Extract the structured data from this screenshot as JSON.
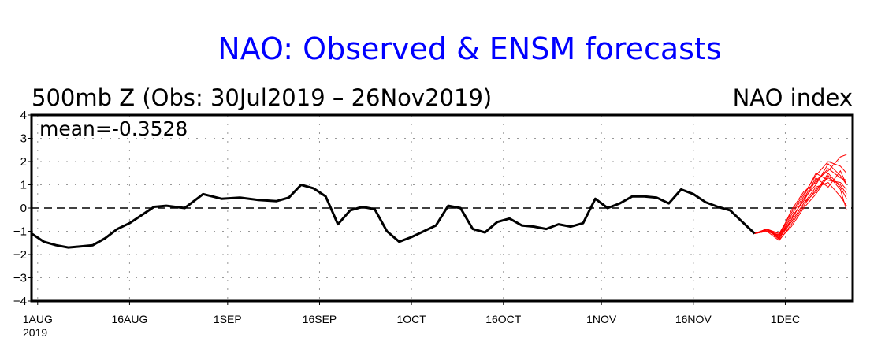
{
  "chart_data": {
    "type": "line",
    "title": "NAO: Observed & ENSM forecasts",
    "subtitle_left": "500mb Z (Obs: 30Jul2019 – 26Nov2019)",
    "subtitle_right": "NAO index",
    "annotation": "mean=-0.3528",
    "ylim": [
      -4,
      4
    ],
    "y_ticks": [
      4,
      3,
      2,
      1,
      0,
      -1,
      -2,
      -3,
      -4
    ],
    "y_tick_labels": [
      "4",
      "3",
      "2",
      "1",
      "0",
      "−1",
      "−2",
      "−3",
      "−4"
    ],
    "xlim": [
      "2019-07-31",
      "2019-12-12"
    ],
    "x_ticks": [
      "2019-08-01",
      "2019-08-16",
      "2019-09-01",
      "2019-09-16",
      "2019-10-01",
      "2019-10-16",
      "2019-11-01",
      "2019-11-16",
      "2019-12-01"
    ],
    "x_tick_labels": [
      "1AUG",
      "16AUG",
      "1SEP",
      "16SEP",
      "1OCT",
      "16OCT",
      "1NOV",
      "16NOV",
      "1DEC"
    ],
    "x_year_label": "2019",
    "grid": true,
    "zero_line": "dashed",
    "colors": {
      "observed": "#000000",
      "forecast": "#ff0000",
      "title": "#0000ff",
      "grid": "#999999"
    },
    "series": [
      {
        "role": "observed",
        "x": [
          "2019-07-31",
          "2019-08-02",
          "2019-08-04",
          "2019-08-06",
          "2019-08-08",
          "2019-08-10",
          "2019-08-12",
          "2019-08-14",
          "2019-08-16",
          "2019-08-18",
          "2019-08-20",
          "2019-08-22",
          "2019-08-25",
          "2019-08-28",
          "2019-08-31",
          "2019-09-03",
          "2019-09-06",
          "2019-09-09",
          "2019-09-11",
          "2019-09-13",
          "2019-09-15",
          "2019-09-17",
          "2019-09-19",
          "2019-09-21",
          "2019-09-23",
          "2019-09-25",
          "2019-09-27",
          "2019-09-29",
          "2019-10-01",
          "2019-10-03",
          "2019-10-05",
          "2019-10-07",
          "2019-10-09",
          "2019-10-11",
          "2019-10-13",
          "2019-10-15",
          "2019-10-17",
          "2019-10-19",
          "2019-10-21",
          "2019-10-23",
          "2019-10-25",
          "2019-10-27",
          "2019-10-29",
          "2019-10-31",
          "2019-11-02",
          "2019-11-04",
          "2019-11-06",
          "2019-11-08",
          "2019-11-10",
          "2019-11-12",
          "2019-11-14",
          "2019-11-16",
          "2019-11-18",
          "2019-11-20",
          "2019-11-22",
          "2019-11-24",
          "2019-11-26"
        ],
        "y": [
          -1.1,
          -1.45,
          -1.6,
          -1.7,
          -1.65,
          -1.6,
          -1.3,
          -0.9,
          -0.65,
          -0.3,
          0.05,
          0.1,
          0.0,
          0.6,
          0.4,
          0.45,
          0.35,
          0.3,
          0.45,
          1.0,
          0.85,
          0.5,
          -0.7,
          -0.1,
          0.05,
          -0.05,
          -1.0,
          -1.45,
          -1.25,
          -1.0,
          -0.75,
          0.1,
          0.0,
          -0.9,
          -1.05,
          -0.6,
          -0.45,
          -0.75,
          -0.8,
          -0.9,
          -0.7,
          -0.8,
          -0.65,
          0.4,
          0.0,
          0.2,
          0.5,
          0.5,
          0.45,
          0.2,
          0.8,
          0.6,
          0.25,
          0.05,
          -0.1,
          -0.6,
          -1.1
        ]
      }
    ],
    "forecast_members": [
      {
        "x": [
          "2019-11-26",
          "2019-11-28",
          "2019-11-30",
          "2019-12-02",
          "2019-12-04",
          "2019-12-06",
          "2019-12-08",
          "2019-12-10",
          "2019-12-11"
        ],
        "y": [
          -1.1,
          -0.9,
          -1.3,
          -0.5,
          0.4,
          1.0,
          1.9,
          1.4,
          1.0
        ]
      },
      {
        "x": [
          "2019-11-26",
          "2019-11-28",
          "2019-11-30",
          "2019-12-02",
          "2019-12-04",
          "2019-12-06",
          "2019-12-08",
          "2019-12-10",
          "2019-12-11"
        ],
        "y": [
          -1.1,
          -0.95,
          -1.1,
          -0.2,
          0.6,
          1.4,
          2.0,
          1.8,
          1.5
        ]
      },
      {
        "x": [
          "2019-11-26",
          "2019-11-28",
          "2019-11-30",
          "2019-12-02",
          "2019-12-04",
          "2019-12-06",
          "2019-12-08",
          "2019-12-10",
          "2019-12-11"
        ],
        "y": [
          -1.1,
          -1.0,
          -1.4,
          -0.7,
          0.1,
          0.8,
          1.3,
          1.0,
          0.6
        ]
      },
      {
        "x": [
          "2019-11-26",
          "2019-11-28",
          "2019-11-30",
          "2019-12-02",
          "2019-12-04",
          "2019-12-06",
          "2019-12-08",
          "2019-12-10",
          "2019-12-11"
        ],
        "y": [
          -1.1,
          -0.9,
          -1.2,
          -0.4,
          0.3,
          1.2,
          1.6,
          2.2,
          2.3
        ]
      },
      {
        "x": [
          "2019-11-26",
          "2019-11-28",
          "2019-11-30",
          "2019-12-02",
          "2019-12-04",
          "2019-12-06",
          "2019-12-08",
          "2019-12-10",
          "2019-12-11"
        ],
        "y": [
          -1.1,
          -0.95,
          -1.3,
          -0.6,
          0.2,
          0.9,
          1.1,
          0.5,
          0.1
        ]
      },
      {
        "x": [
          "2019-11-26",
          "2019-11-28",
          "2019-11-30",
          "2019-12-02",
          "2019-12-04",
          "2019-12-06",
          "2019-12-08",
          "2019-12-10",
          "2019-12-11"
        ],
        "y": [
          -1.1,
          -1.0,
          -1.15,
          -0.3,
          0.5,
          1.5,
          1.2,
          1.1,
          0.8
        ]
      },
      {
        "x": [
          "2019-11-26",
          "2019-11-28",
          "2019-11-30",
          "2019-12-02",
          "2019-12-04",
          "2019-12-06",
          "2019-12-08",
          "2019-12-10",
          "2019-12-11"
        ],
        "y": [
          -1.1,
          -0.9,
          -1.35,
          -0.8,
          0.0,
          0.6,
          1.4,
          0.8,
          -0.1
        ]
      },
      {
        "x": [
          "2019-11-26",
          "2019-11-28",
          "2019-11-30",
          "2019-12-02",
          "2019-12-04",
          "2019-12-06",
          "2019-12-08",
          "2019-12-10",
          "2019-12-11"
        ],
        "y": [
          -1.1,
          -1.0,
          -1.2,
          -0.1,
          0.7,
          1.1,
          1.7,
          1.3,
          1.2
        ]
      },
      {
        "x": [
          "2019-11-26",
          "2019-11-28",
          "2019-11-30",
          "2019-12-02",
          "2019-12-04",
          "2019-12-06",
          "2019-12-08",
          "2019-12-10",
          "2019-12-11"
        ],
        "y": [
          -1.1,
          -0.95,
          -1.25,
          -0.5,
          0.4,
          1.3,
          0.9,
          1.6,
          1.0
        ]
      },
      {
        "x": [
          "2019-11-26",
          "2019-11-28",
          "2019-11-30",
          "2019-12-02",
          "2019-12-04",
          "2019-12-06",
          "2019-12-08",
          "2019-12-10",
          "2019-12-11"
        ],
        "y": [
          -1.1,
          -0.9,
          -1.1,
          -0.6,
          0.2,
          0.7,
          1.5,
          0.9,
          0.4
        ]
      }
    ]
  }
}
